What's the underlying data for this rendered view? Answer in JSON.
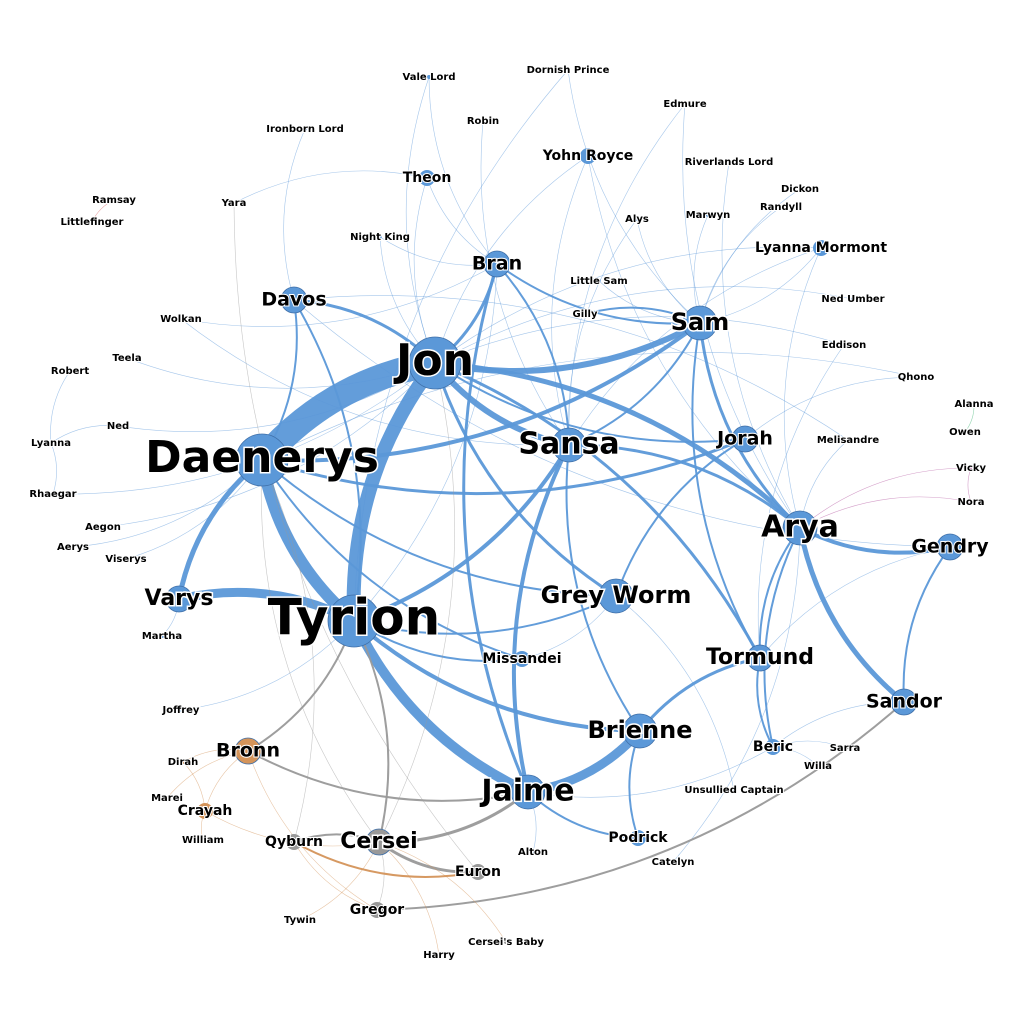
{
  "colors": {
    "blue": "#5b98d8",
    "orange": "#d4945a",
    "gray": "#999999",
    "green": "#3cb371",
    "purple": "#b0509c",
    "red": "#d96060"
  },
  "nodes": [
    {
      "id": "ramsay",
      "label": "Ramsay",
      "group": "red",
      "weight": 1
    },
    {
      "id": "littlefinger",
      "label": "Littlefinger",
      "group": "red",
      "weight": 1
    },
    {
      "id": "vale-lord",
      "label": "Vale Lord",
      "group": "blue",
      "weight": 1
    },
    {
      "id": "dornish-prince",
      "label": "Dornish Prince",
      "group": "blue",
      "weight": 1
    },
    {
      "id": "edmure",
      "label": "Edmure",
      "group": "blue",
      "weight": 1
    },
    {
      "id": "ironborn-lord",
      "label": "Ironborn Lord",
      "group": "blue",
      "weight": 1
    },
    {
      "id": "robin",
      "label": "Robin",
      "group": "blue",
      "weight": 1
    },
    {
      "id": "yohn-royce",
      "label": "Yohn Royce",
      "group": "blue",
      "weight": 2
    },
    {
      "id": "riverlands-lord",
      "label": "Riverlands Lord",
      "group": "blue",
      "weight": 1
    },
    {
      "id": "dickon",
      "label": "Dickon",
      "group": "blue",
      "weight": 1
    },
    {
      "id": "randyll",
      "label": "Randyll",
      "group": "blue",
      "weight": 1
    },
    {
      "id": "theon",
      "label": "Theon",
      "group": "blue",
      "weight": 2
    },
    {
      "id": "yara",
      "label": "Yara",
      "group": "blue",
      "weight": 1
    },
    {
      "id": "alys",
      "label": "Alys",
      "group": "blue",
      "weight": 1
    },
    {
      "id": "marwyn",
      "label": "Marwyn",
      "group": "blue",
      "weight": 1
    },
    {
      "id": "night-king",
      "label": "Night King",
      "group": "blue",
      "weight": 1
    },
    {
      "id": "lyanna-mormont",
      "label": "Lyanna Mormont",
      "group": "blue",
      "weight": 2
    },
    {
      "id": "bran",
      "label": "Bran",
      "group": "blue",
      "weight": 3
    },
    {
      "id": "little-sam",
      "label": "Little Sam",
      "group": "blue",
      "weight": 1
    },
    {
      "id": "davos",
      "label": "Davos",
      "group": "blue",
      "weight": 3
    },
    {
      "id": "ned-umber",
      "label": "Ned Umber",
      "group": "blue",
      "weight": 1
    },
    {
      "id": "gilly",
      "label": "Gilly",
      "group": "blue",
      "weight": 1
    },
    {
      "id": "sam",
      "label": "Sam",
      "group": "blue",
      "weight": 5
    },
    {
      "id": "wolkan",
      "label": "Wolkan",
      "group": "blue",
      "weight": 1
    },
    {
      "id": "eddison",
      "label": "Eddison",
      "group": "blue",
      "weight": 1
    },
    {
      "id": "jon",
      "label": "Jon",
      "group": "blue",
      "weight": 9
    },
    {
      "id": "teela",
      "label": "Teela",
      "group": "blue",
      "weight": 1
    },
    {
      "id": "robert",
      "label": "Robert",
      "group": "blue",
      "weight": 1
    },
    {
      "id": "qhono",
      "label": "Qhono",
      "group": "blue",
      "weight": 1
    },
    {
      "id": "alanna",
      "label": "Alanna",
      "group": "green",
      "weight": 1
    },
    {
      "id": "ned",
      "label": "Ned",
      "group": "blue",
      "weight": 1
    },
    {
      "id": "owen",
      "label": "Owen",
      "group": "green",
      "weight": 1
    },
    {
      "id": "lyanna",
      "label": "Lyanna",
      "group": "blue",
      "weight": 1
    },
    {
      "id": "jorah",
      "label": "Jorah",
      "group": "blue",
      "weight": 3
    },
    {
      "id": "melisandre",
      "label": "Melisandre",
      "group": "blue",
      "weight": 1
    },
    {
      "id": "sansa",
      "label": "Sansa",
      "group": "blue",
      "weight": 6
    },
    {
      "id": "daenerys",
      "label": "Daenerys",
      "group": "blue",
      "weight": 9
    },
    {
      "id": "vicky",
      "label": "Vicky",
      "group": "purple",
      "weight": 1
    },
    {
      "id": "rhaegar",
      "label": "Rhaegar",
      "group": "blue",
      "weight": 1
    },
    {
      "id": "nora",
      "label": "Nora",
      "group": "purple",
      "weight": 1
    },
    {
      "id": "aegon",
      "label": "Aegon",
      "group": "blue",
      "weight": 1
    },
    {
      "id": "arya",
      "label": "Arya",
      "group": "blue",
      "weight": 6
    },
    {
      "id": "aerys",
      "label": "Aerys",
      "group": "blue",
      "weight": 1
    },
    {
      "id": "viserys",
      "label": "Viserys",
      "group": "blue",
      "weight": 1
    },
    {
      "id": "gendry",
      "label": "Gendry",
      "group": "blue",
      "weight": 3
    },
    {
      "id": "varys",
      "label": "Varys",
      "group": "blue",
      "weight": 4
    },
    {
      "id": "grey-worm",
      "label": "Grey Worm",
      "group": "blue",
      "weight": 5
    },
    {
      "id": "tyrion",
      "label": "Tyrion",
      "group": "blue",
      "weight": 10
    },
    {
      "id": "martha",
      "label": "Martha",
      "group": "blue",
      "weight": 1
    },
    {
      "id": "missandei",
      "label": "Missandei",
      "group": "blue",
      "weight": 2
    },
    {
      "id": "tormund",
      "label": "Tormund",
      "group": "blue",
      "weight": 4
    },
    {
      "id": "joffrey",
      "label": "Joffrey",
      "group": "blue",
      "weight": 1
    },
    {
      "id": "sandor",
      "label": "Sandor",
      "group": "blue",
      "weight": 3
    },
    {
      "id": "brienne",
      "label": "Brienne",
      "group": "blue",
      "weight": 5
    },
    {
      "id": "bronn",
      "label": "Bronn",
      "group": "orange",
      "weight": 3
    },
    {
      "id": "beric",
      "label": "Beric",
      "group": "blue",
      "weight": 2
    },
    {
      "id": "sarra",
      "label": "Sarra",
      "group": "blue",
      "weight": 1
    },
    {
      "id": "dirah",
      "label": "Dirah",
      "group": "orange",
      "weight": 1
    },
    {
      "id": "willa",
      "label": "Willa",
      "group": "blue",
      "weight": 1
    },
    {
      "id": "jaime",
      "label": "Jaime",
      "group": "blue",
      "weight": 6
    },
    {
      "id": "marei",
      "label": "Marei",
      "group": "orange",
      "weight": 1
    },
    {
      "id": "unsullied-captain",
      "label": "Unsullied Captain",
      "group": "blue",
      "weight": 1
    },
    {
      "id": "crayah",
      "label": "Crayah",
      "group": "orange",
      "weight": 2
    },
    {
      "id": "william",
      "label": "William",
      "group": "orange",
      "weight": 1
    },
    {
      "id": "podrick",
      "label": "Podrick",
      "group": "blue",
      "weight": 2
    },
    {
      "id": "qyburn",
      "label": "Qyburn",
      "group": "gray",
      "weight": 2
    },
    {
      "id": "cersei",
      "label": "Cersei",
      "group": "gray",
      "weight": 4
    },
    {
      "id": "alton",
      "label": "Alton",
      "group": "blue",
      "weight": 1
    },
    {
      "id": "catelyn",
      "label": "Catelyn",
      "group": "blue",
      "weight": 1
    },
    {
      "id": "euron",
      "label": "Euron",
      "group": "gray",
      "weight": 2
    },
    {
      "id": "gregor",
      "label": "Gregor",
      "group": "gray",
      "weight": 2
    },
    {
      "id": "tywin",
      "label": "Tywin",
      "group": "gray",
      "weight": 1
    },
    {
      "id": "cersei-baby",
      "label": "Cersei's Baby",
      "group": "gray",
      "weight": 1
    },
    {
      "id": "harry",
      "label": "Harry",
      "group": "orange",
      "weight": 1
    }
  ],
  "edges": [
    [
      "jon",
      "daenerys",
      26,
      "blue"
    ],
    [
      "jon",
      "tyrion",
      14,
      "blue"
    ],
    [
      "daenerys",
      "tyrion",
      12,
      "blue"
    ],
    [
      "tyrion",
      "jaime",
      10,
      "blue"
    ],
    [
      "jaime",
      "brienne",
      9,
      "blue"
    ],
    [
      "tyrion",
      "varys",
      9,
      "blue"
    ],
    [
      "jon",
      "sam",
      6,
      "blue"
    ],
    [
      "jon",
      "sansa",
      6,
      "blue"
    ],
    [
      "arya",
      "sandor",
      5,
      "blue"
    ],
    [
      "arya",
      "jon",
      5,
      "blue"
    ],
    [
      "daenerys",
      "varys",
      5,
      "blue"
    ],
    [
      "tyrion",
      "sansa",
      4,
      "blue"
    ],
    [
      "arya",
      "gendry",
      4,
      "blue"
    ],
    [
      "sansa",
      "jaime",
      4,
      "blue"
    ],
    [
      "tyrion",
      "brienne",
      4,
      "blue"
    ],
    [
      "daenerys",
      "sam",
      4,
      "blue"
    ],
    [
      "jon",
      "grey-worm",
      3,
      "blue"
    ],
    [
      "bran",
      "jaime",
      3,
      "blue"
    ],
    [
      "tormund",
      "brienne",
      3,
      "blue"
    ],
    [
      "jon",
      "davos",
      3,
      "blue"
    ],
    [
      "sam",
      "arya",
      3,
      "blue"
    ],
    [
      "daenerys",
      "jorah",
      3,
      "blue"
    ],
    [
      "tormund",
      "jon",
      3,
      "blue"
    ],
    [
      "arya",
      "sansa",
      3,
      "blue"
    ],
    [
      "jon",
      "bran",
      3,
      "blue"
    ],
    [
      "tyrion",
      "grey-worm",
      2,
      "blue"
    ],
    [
      "bran",
      "sam",
      2,
      "blue"
    ],
    [
      "daenerys",
      "grey-worm",
      2,
      "blue"
    ],
    [
      "daenerys",
      "davos",
      2,
      "blue"
    ],
    [
      "tyrion",
      "davos",
      2,
      "blue"
    ],
    [
      "sansa",
      "bran",
      2,
      "blue"
    ],
    [
      "jaime",
      "podrick",
      2,
      "blue"
    ],
    [
      "arya",
      "beric",
      2,
      "blue"
    ],
    [
      "gendry",
      "sandor",
      2,
      "blue"
    ],
    [
      "brienne",
      "podrick",
      2,
      "blue"
    ],
    [
      "tyrion",
      "missandei",
      2,
      "blue"
    ],
    [
      "jon",
      "jorah",
      2,
      "blue"
    ],
    [
      "sam",
      "gilly",
      2,
      "blue"
    ],
    [
      "sam",
      "tormund",
      2,
      "blue"
    ],
    [
      "daenerys",
      "missandei",
      2,
      "blue"
    ],
    [
      "arya",
      "tormund",
      2,
      "blue"
    ],
    [
      "sansa",
      "sam",
      2,
      "blue"
    ],
    [
      "jorah",
      "grey-worm",
      2,
      "blue"
    ],
    [
      "tormund",
      "beric",
      2,
      "blue"
    ],
    [
      "sansa",
      "brienne",
      2,
      "blue"
    ],
    [
      "jaime",
      "beric",
      1,
      "blue"
    ],
    [
      "gendry",
      "tormund",
      1,
      "blue"
    ],
    [
      "sandor",
      "beric",
      1,
      "blue"
    ],
    [
      "tyrion",
      "bran",
      1,
      "blue"
    ],
    [
      "theon",
      "bran",
      1,
      "blue"
    ],
    [
      "theon",
      "yara",
      1,
      "blue"
    ],
    [
      "theon",
      "jon",
      1,
      "blue"
    ],
    [
      "yohn-royce",
      "sansa",
      1,
      "blue"
    ],
    [
      "yohn-royce",
      "arya",
      1,
      "blue"
    ],
    [
      "yohn-royce",
      "jon",
      1,
      "blue"
    ],
    [
      "lyanna-mormont",
      "jon",
      1,
      "blue"
    ],
    [
      "lyanna-mormont",
      "sansa",
      1,
      "blue"
    ],
    [
      "lyanna-mormont",
      "arya",
      1,
      "blue"
    ],
    [
      "edmure",
      "sansa",
      1,
      "blue"
    ],
    [
      "edmure",
      "arya",
      1,
      "blue"
    ],
    [
      "vale-lord",
      "jon",
      1,
      "blue"
    ],
    [
      "vale-lord",
      "bran",
      1,
      "blue"
    ],
    [
      "dornish-prince",
      "sam",
      1,
      "blue"
    ],
    [
      "dornish-prince",
      "tyrion",
      1,
      "blue"
    ],
    [
      "ironborn-lord",
      "davos",
      1,
      "blue"
    ],
    [
      "robin",
      "sansa",
      1,
      "blue"
    ],
    [
      "riverlands-lord",
      "arya",
      1,
      "blue"
    ],
    [
      "alys",
      "sansa",
      1,
      "blue"
    ],
    [
      "alys",
      "sam",
      1,
      "blue"
    ],
    [
      "marwyn",
      "sam",
      1,
      "blue"
    ],
    [
      "night-king",
      "bran",
      1,
      "blue"
    ],
    [
      "night-king",
      "jon",
      1,
      "blue"
    ],
    [
      "little-sam",
      "sam",
      1,
      "blue"
    ],
    [
      "ned-umber",
      "jon",
      1,
      "blue"
    ],
    [
      "eddison",
      "jon",
      1,
      "blue"
    ],
    [
      "eddison",
      "tormund",
      1,
      "blue"
    ],
    [
      "qhono",
      "daenerys",
      1,
      "blue"
    ],
    [
      "qhono",
      "jorah",
      1,
      "blue"
    ],
    [
      "melisandre",
      "arya",
      1,
      "blue"
    ],
    [
      "melisandre",
      "davos",
      1,
      "blue"
    ],
    [
      "wolkan",
      "sansa",
      1,
      "blue"
    ],
    [
      "wolkan",
      "bran",
      1,
      "blue"
    ],
    [
      "teela",
      "jon",
      1,
      "blue"
    ],
    [
      "robert",
      "lyanna",
      1,
      "blue"
    ],
    [
      "ned",
      "lyanna",
      1,
      "blue"
    ],
    [
      "ned",
      "jon",
      1,
      "blue"
    ],
    [
      "rhaegar",
      "lyanna",
      1,
      "blue"
    ],
    [
      "rhaegar",
      "jon",
      1,
      "blue"
    ],
    [
      "aegon",
      "jon",
      1,
      "blue"
    ],
    [
      "aerys",
      "daenerys",
      1,
      "blue"
    ],
    [
      "viserys",
      "daenerys",
      1,
      "blue"
    ],
    [
      "martha",
      "varys",
      1,
      "blue"
    ],
    [
      "joffrey",
      "tyrion",
      1,
      "blue"
    ],
    [
      "sarra",
      "beric",
      1,
      "blue"
    ],
    [
      "willa",
      "beric",
      1,
      "blue"
    ],
    [
      "unsullied-captain",
      "grey-worm",
      1,
      "blue"
    ],
    [
      "alton",
      "jaime",
      1,
      "blue"
    ],
    [
      "catelyn",
      "arya",
      1,
      "blue"
    ],
    [
      "dickon",
      "sam",
      1,
      "blue"
    ],
    [
      "randyll",
      "sam",
      1,
      "blue"
    ],
    [
      "missandei",
      "grey-worm",
      1,
      "blue"
    ],
    [
      "davos",
      "gendry",
      1,
      "blue"
    ],
    [
      "sam",
      "lyanna-mormont",
      1,
      "blue"
    ],
    [
      "bronn",
      "jaime",
      2,
      "gray"
    ],
    [
      "bronn",
      "tyrion",
      2,
      "gray"
    ],
    [
      "cersei",
      "jaime",
      3,
      "gray"
    ],
    [
      "cersei",
      "tyrion",
      2,
      "gray"
    ],
    [
      "cersei",
      "qyburn",
      2,
      "gray"
    ],
    [
      "cersei",
      "euron",
      3,
      "gray"
    ],
    [
      "gregor",
      "sandor",
      2,
      "gray"
    ],
    [
      "yara",
      "euron",
      1,
      "gray"
    ],
    [
      "daenerys",
      "cersei",
      1,
      "gray"
    ],
    [
      "qyburn",
      "daenerys",
      1,
      "gray"
    ],
    [
      "gregor",
      "cersei",
      1,
      "gray"
    ],
    [
      "cersei",
      "jon",
      1,
      "gray"
    ],
    [
      "bronn",
      "dirah",
      1,
      "orange"
    ],
    [
      "bronn",
      "marei",
      1,
      "orange"
    ],
    [
      "bronn",
      "crayah",
      1,
      "orange"
    ],
    [
      "crayah",
      "william",
      1,
      "orange"
    ],
    [
      "crayah",
      "dirah",
      1,
      "orange"
    ],
    [
      "qyburn",
      "gregor",
      1,
      "orange"
    ],
    [
      "qyburn",
      "euron",
      2,
      "orange"
    ],
    [
      "harry",
      "cersei",
      1,
      "orange"
    ],
    [
      "tywin",
      "cersei",
      1,
      "orange"
    ],
    [
      "cersei-baby",
      "cersei",
      1,
      "orange"
    ],
    [
      "bronn",
      "gregor",
      1,
      "orange"
    ],
    [
      "crayah",
      "cersei",
      1,
      "orange"
    ],
    [
      "vicky",
      "arya",
      1,
      "purple"
    ],
    [
      "nora",
      "arya",
      1,
      "purple"
    ],
    [
      "vicky",
      "nora",
      1,
      "purple"
    ],
    [
      "owen",
      "alanna",
      1,
      "green"
    ],
    [
      "ramsay",
      "littlefinger",
      1,
      "red"
    ]
  ]
}
